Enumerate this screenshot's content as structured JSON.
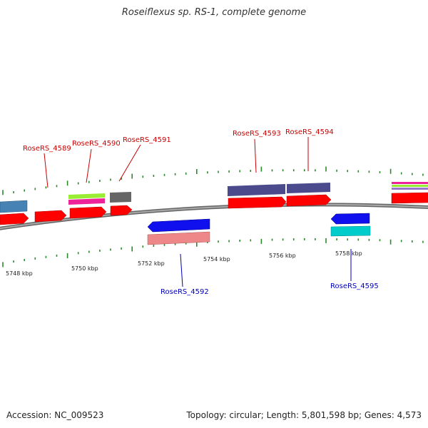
{
  "title": "Roseiflexus sp. RS-1, complete genome",
  "footer": {
    "accession": "Accession: NC_009523",
    "topology": "Topology: circular; Length: 5,801,598 bp; Genes: 4,573"
  },
  "colors": {
    "backbone": "#888888",
    "tick": "#2a8a2a",
    "forward_label": "#cc0000",
    "reverse_label": "#0000bb",
    "cds": "#ff0000",
    "gene_purple": "#4a4a8c",
    "gene_blue": "#1010ee",
    "gene_salmon": "#ee8888",
    "gene_cyan": "#00cccc",
    "gene_steel": "#4682b4",
    "gene_lime": "#99ee33",
    "gene_magenta": "#ee2299",
    "gene_gray": "#666666"
  },
  "axis": {
    "unit": "kbp",
    "tick_labels": [
      "5748 kbp",
      "5750 kbp",
      "5752 kbp",
      "5754 kbp",
      "5756 kbp",
      "5758 kbp"
    ]
  },
  "gene_labels": [
    {
      "text": "RoseRS_4589",
      "strand": "forward"
    },
    {
      "text": "RoseRS_4590",
      "strand": "forward"
    },
    {
      "text": "RoseRS_4591",
      "strand": "forward"
    },
    {
      "text": "RoseRS_4593",
      "strand": "forward"
    },
    {
      "text": "RoseRS_4594",
      "strand": "forward"
    },
    {
      "text": "RoseRS_4592",
      "strand": "reverse"
    },
    {
      "text": "RoseRS_4595",
      "strand": "reverse"
    }
  ]
}
